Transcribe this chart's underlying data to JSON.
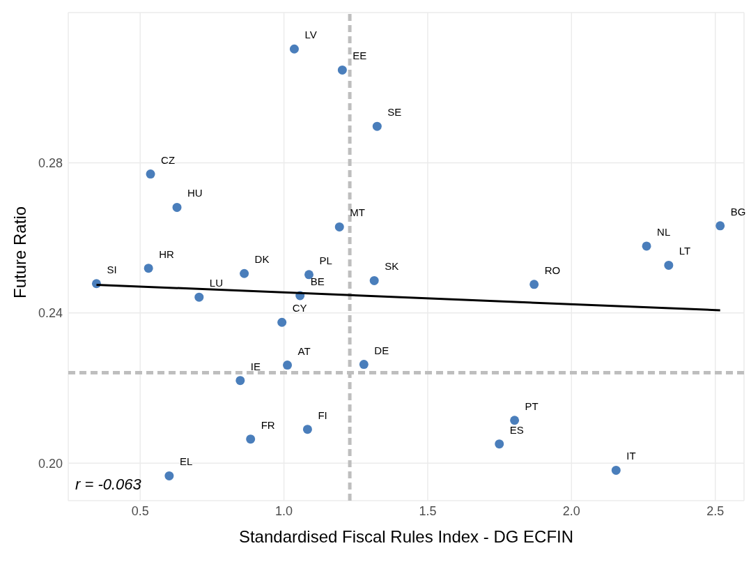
{
  "chart_data": {
    "type": "scatter",
    "xlabel": "Standardised Fiscal Rules Index - DG ECFIN",
    "ylabel": "Future Ratio",
    "x": [
      1.036,
      1.203,
      1.324,
      0.536,
      0.628,
      1.193,
      2.517,
      2.261,
      2.338,
      0.529,
      0.862,
      1.087,
      1.314,
      1.87,
      0.348,
      0.705,
      1.056,
      0.993,
      1.012,
      1.278,
      0.848,
      0.884,
      1.082,
      1.802,
      1.749,
      2.155,
      0.601
    ],
    "series": [
      {
        "color": "#4a7ebb",
        "values": [
          0.3103,
          0.3047,
          0.2897,
          0.277,
          0.2681,
          0.2629,
          0.2632,
          0.2578,
          0.2527,
          0.2519,
          0.2505,
          0.2502,
          0.2486,
          0.2476,
          0.2478,
          0.2442,
          0.2446,
          0.2375,
          0.2261,
          0.2263,
          0.222,
          0.2064,
          0.209,
          0.2114,
          0.2051,
          0.1981,
          0.1966
        ]
      },
      {
        "type": "line",
        "x": [
          0.348,
          2.517
        ],
        "values": [
          0.2475,
          0.2407
        ],
        "color": "#000000",
        "marker": "none"
      }
    ],
    "xlim": [
      0.25,
      2.6
    ],
    "ylim": [
      0.19,
      0.32
    ],
    "xticks": [
      {
        "value": 0.5,
        "label": "0.5"
      },
      {
        "value": 1,
        "label": "1.0"
      },
      {
        "value": 1.5,
        "label": "1.5"
      },
      {
        "value": 2,
        "label": "2.0"
      },
      {
        "value": 2.5,
        "label": "2.5"
      }
    ],
    "yticks": [
      {
        "value": 0.2,
        "label": "0.20"
      },
      {
        "value": 0.24,
        "label": "0.24"
      },
      {
        "value": 0.28,
        "label": "0.28"
      }
    ],
    "grid": true,
    "marker": "circle",
    "legend": false,
    "ref_lines": [
      {
        "axis": "x",
        "value": 1.229,
        "color": "#bebebe",
        "line_style": "dashed"
      },
      {
        "axis": "y",
        "value": 0.2241,
        "color": "#bebebe",
        "line_style": "dashed"
      }
    ],
    "annotations": [
      {
        "text": "LV",
        "x": 1.036,
        "y": 0.3103
      },
      {
        "text": "EE",
        "x": 1.203,
        "y": 0.3047
      },
      {
        "text": "SE",
        "x": 1.324,
        "y": 0.2897
      },
      {
        "text": "CZ",
        "x": 0.536,
        "y": 0.277
      },
      {
        "text": "HU",
        "x": 0.628,
        "y": 0.2681
      },
      {
        "text": "MT",
        "x": 1.193,
        "y": 0.2629
      },
      {
        "text": "BG",
        "x": 2.517,
        "y": 0.2632
      },
      {
        "text": "NL",
        "x": 2.261,
        "y": 0.2578
      },
      {
        "text": "LT",
        "x": 2.338,
        "y": 0.2527
      },
      {
        "text": "HR",
        "x": 0.529,
        "y": 0.2519
      },
      {
        "text": "DK",
        "x": 0.862,
        "y": 0.2505
      },
      {
        "text": "PL",
        "x": 1.087,
        "y": 0.2502
      },
      {
        "text": "SK",
        "x": 1.314,
        "y": 0.2486
      },
      {
        "text": "RO",
        "x": 1.87,
        "y": 0.2476
      },
      {
        "text": "SI",
        "x": 0.348,
        "y": 0.2478
      },
      {
        "text": "LU",
        "x": 0.705,
        "y": 0.2442
      },
      {
        "text": "BE",
        "x": 1.056,
        "y": 0.2446
      },
      {
        "text": "CY",
        "x": 0.993,
        "y": 0.2375
      },
      {
        "text": "AT",
        "x": 1.012,
        "y": 0.2261
      },
      {
        "text": "DE",
        "x": 1.278,
        "y": 0.2263
      },
      {
        "text": "IE",
        "x": 0.848,
        "y": 0.222
      },
      {
        "text": "FR",
        "x": 0.884,
        "y": 0.2064
      },
      {
        "text": "FI",
        "x": 1.082,
        "y": 0.209
      },
      {
        "text": "PT",
        "x": 1.802,
        "y": 0.2114
      },
      {
        "text": "ES",
        "x": 1.749,
        "y": 0.2051
      },
      {
        "text": "IT",
        "x": 2.155,
        "y": 0.1981
      },
      {
        "text": "EL",
        "x": 0.601,
        "y": 0.1966
      },
      "r = -0.063"
    ]
  }
}
